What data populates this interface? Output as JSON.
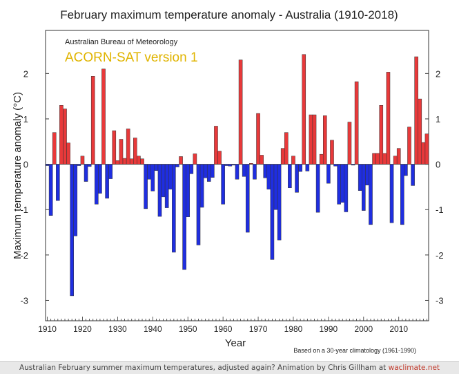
{
  "chart_data": {
    "type": "bar",
    "title": "February maximum temperature anomaly - Australia (1910-2018)",
    "source_label": "Australian Bureau of Meteorology",
    "dataset_label": "ACORN-SAT version 1",
    "xlabel": "Year",
    "ylabel": "Maximum temperature anomaly (°C)",
    "note": "Based on a 30-year climatology (1961-1990)",
    "xlim": [
      1909.5,
      2018.5
    ],
    "ylim": [
      -3.45,
      2.95
    ],
    "x_ticks": [
      1910,
      1920,
      1930,
      1940,
      1950,
      1960,
      1970,
      1980,
      1990,
      2000,
      2010
    ],
    "y_ticks": [
      -3,
      -2,
      -1,
      0,
      1,
      2
    ],
    "colors": {
      "positive": "#e8393a",
      "negative": "#1f2ee0",
      "outline": "#333333",
      "title": "#222222",
      "dataset": "#e0b400"
    },
    "x": [
      1910,
      1911,
      1912,
      1913,
      1914,
      1915,
      1916,
      1917,
      1918,
      1919,
      1920,
      1921,
      1922,
      1923,
      1924,
      1925,
      1926,
      1927,
      1928,
      1929,
      1930,
      1931,
      1932,
      1933,
      1934,
      1935,
      1936,
      1937,
      1938,
      1939,
      1940,
      1941,
      1942,
      1943,
      1944,
      1945,
      1946,
      1947,
      1948,
      1949,
      1950,
      1951,
      1952,
      1953,
      1954,
      1955,
      1956,
      1957,
      1958,
      1959,
      1960,
      1961,
      1962,
      1963,
      1964,
      1965,
      1966,
      1967,
      1968,
      1969,
      1970,
      1971,
      1972,
      1973,
      1974,
      1975,
      1976,
      1977,
      1978,
      1979,
      1980,
      1981,
      1982,
      1983,
      1984,
      1985,
      1986,
      1987,
      1988,
      1989,
      1990,
      1991,
      1992,
      1993,
      1994,
      1995,
      1996,
      1997,
      1998,
      1999,
      2000,
      2001,
      2002,
      2003,
      2004,
      2005,
      2006,
      2007,
      2008,
      2009,
      2010,
      2011,
      2012,
      2013,
      2014,
      2015,
      2016,
      2017,
      2018
    ],
    "values": [
      -0.03,
      -1.13,
      0.7,
      -0.8,
      1.3,
      1.22,
      0.47,
      -2.9,
      -1.58,
      -0.03,
      0.18,
      -0.38,
      -0.05,
      1.94,
      -0.88,
      -0.64,
      2.1,
      -0.75,
      -0.32,
      0.74,
      0.08,
      0.55,
      0.13,
      0.78,
      0.12,
      0.58,
      0.18,
      0.12,
      -0.98,
      -0.33,
      -0.59,
      -0.14,
      -1.15,
      -0.72,
      -0.96,
      -0.55,
      -1.94,
      -0.06,
      0.17,
      -2.32,
      -1.16,
      -0.21,
      0.23,
      -1.78,
      -0.95,
      -0.3,
      -0.38,
      -0.29,
      0.84,
      0.29,
      -0.88,
      -0.03,
      -0.04,
      -0.02,
      -0.33,
      2.3,
      -0.27,
      -1.5,
      0.02,
      -0.33,
      1.12,
      0.2,
      -0.3,
      -0.55,
      -2.1,
      -1.0,
      -1.67,
      0.35,
      0.7,
      -0.52,
      0.18,
      -0.62,
      -0.16,
      2.42,
      -0.15,
      1.09,
      1.09,
      -1.06,
      0.22,
      1.07,
      -0.42,
      0.53,
      -0.04,
      -0.88,
      -0.84,
      -1.05,
      0.93,
      -0.02,
      1.82,
      -0.58,
      -1.02,
      -0.46,
      -1.33,
      0.24,
      0.24,
      1.3,
      0.24,
      2.03,
      -1.29,
      0.18,
      0.35,
      -1.33,
      -0.25,
      0.82,
      -0.47,
      2.37,
      1.44,
      0.48,
      0.67
    ]
  },
  "footer": {
    "caption": "Australian February summer maximum temperatures, adjusted again? Animation by Chris Gillham at ",
    "site": "waclimate.net"
  }
}
